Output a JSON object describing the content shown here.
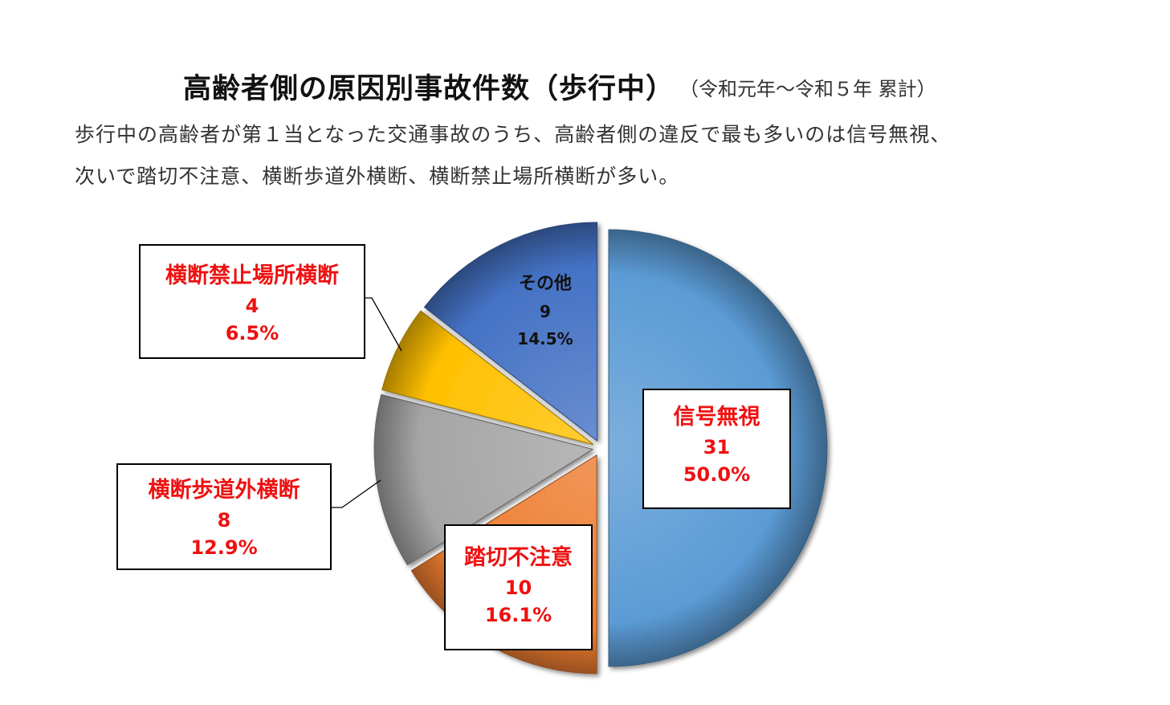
{
  "title": "高齢者側の原因別事故件数（歩行中）",
  "subtitle": "（令和元年～令和５年 累計）",
  "description": [
    "歩行中の高齢者が第１当となった交通事故のうち、高齢者側の違反で最も多いのは信号無視、",
    "次いで踏切不注意、横断歩道外横断、横断禁止場所横断が多い。"
  ],
  "chart_data": {
    "type": "pie",
    "title": "高齢者側の原因別事故件数（歩行中）",
    "slices": [
      {
        "label": "信号無視",
        "value": 31,
        "percent": "50.0%",
        "color": "#5b9bd5"
      },
      {
        "label": "踏切不注意",
        "value": 10,
        "percent": "16.1%",
        "color": "#ed7d31"
      },
      {
        "label": "横断歩道外横断",
        "value": 8,
        "percent": "12.9%",
        "color": "#a5a5a5"
      },
      {
        "label": "横断禁止場所横断",
        "value": 4,
        "percent": "6.5%",
        "color": "#ffc000"
      },
      {
        "label": "その他",
        "value": 9,
        "percent": "14.5%",
        "color": "#4472c4"
      }
    ],
    "start_angle": "12 o'clock",
    "direction": "clockwise",
    "exploded": true,
    "legend": "none"
  }
}
